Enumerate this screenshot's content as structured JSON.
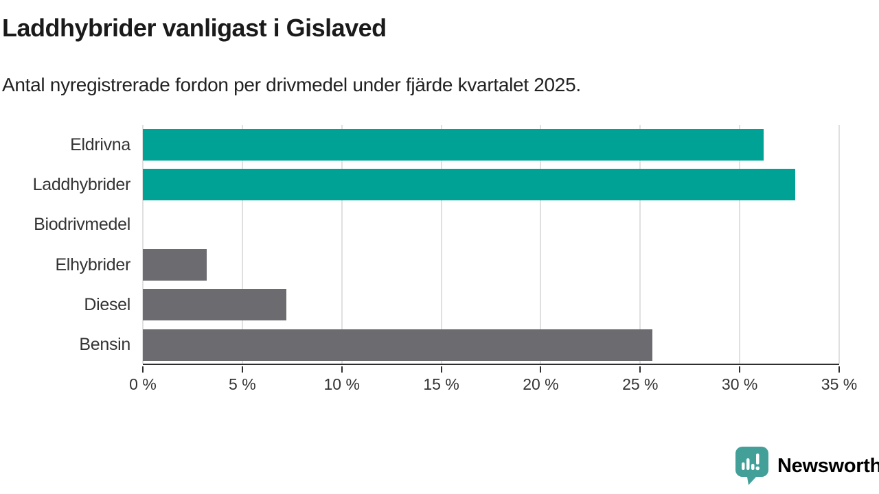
{
  "chart_data": {
    "type": "bar",
    "orientation": "horizontal",
    "title": "Laddhybrider vanligast i Gislaved",
    "subtitle": "Antal nyregistrerade fordon per drivmedel under fjärde kvartalet 2025.",
    "categories": [
      "Eldrivna",
      "Laddhybrider",
      "Biodrivmedel",
      "Elhybrider",
      "Diesel",
      "Bensin"
    ],
    "values": [
      31.2,
      32.8,
      0,
      3.2,
      7.2,
      25.6
    ],
    "unit": "%",
    "bar_colors": [
      "#00a296",
      "#00a296",
      "#6c6b70",
      "#6c6b70",
      "#6c6b70",
      "#6c6b70"
    ],
    "xlim": [
      0,
      35
    ],
    "x_ticks": [
      0,
      5,
      10,
      15,
      20,
      25,
      30,
      35
    ],
    "x_tick_labels": [
      "0 %",
      "5 %",
      "10 %",
      "15 %",
      "20 %",
      "25 %",
      "30 %",
      "35 %"
    ],
    "grid": "vertical-only",
    "legend": "none"
  },
  "colors": {
    "accent_teal": "#00a296",
    "neutral_gray": "#6c6b70",
    "axis": "#2e2e2e",
    "gridline": "#e0e0e0",
    "text": "#333333",
    "logo_teal": "#42a099"
  },
  "footer": {
    "brand": "Newsworthy",
    "logo_icon": "newsworthy-speech-bubble-chart-icon"
  }
}
